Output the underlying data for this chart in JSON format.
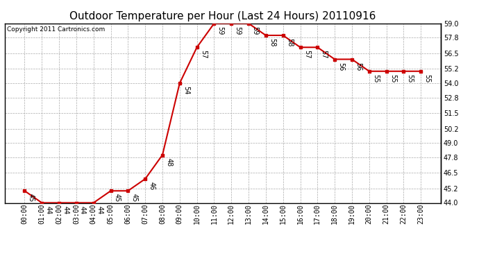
{
  "title": "Outdoor Temperature per Hour (Last 24 Hours) 20110916",
  "copyright": "Copyright 2011 Cartronics.com",
  "hours": [
    "00:00",
    "01:00",
    "02:00",
    "03:00",
    "04:00",
    "05:00",
    "06:00",
    "07:00",
    "08:00",
    "09:00",
    "10:00",
    "11:00",
    "12:00",
    "13:00",
    "14:00",
    "15:00",
    "16:00",
    "17:00",
    "18:00",
    "19:00",
    "20:00",
    "21:00",
    "22:00",
    "23:00"
  ],
  "temps": [
    45,
    44,
    44,
    44,
    44,
    45,
    45,
    46,
    48,
    54,
    57,
    59,
    59,
    59,
    58,
    58,
    57,
    57,
    56,
    56,
    55,
    55,
    55,
    55
  ],
  "ylim_min": 44.0,
  "ylim_max": 59.0,
  "yticks": [
    44.0,
    45.2,
    46.5,
    47.8,
    49.0,
    50.2,
    51.5,
    52.8,
    54.0,
    55.2,
    56.5,
    57.8,
    59.0
  ],
  "ytick_labels": [
    "44.0",
    "45.2",
    "46.5",
    "47.8",
    "49.0",
    "50.2",
    "51.5",
    "52.8",
    "54.0",
    "55.2",
    "56.5",
    "57.8",
    "59.0"
  ],
  "line_color": "#cc0000",
  "bg_color": "#ffffff",
  "grid_color": "#aaaaaa",
  "title_fontsize": 11,
  "tick_fontsize": 7,
  "annot_fontsize": 7,
  "copyright_fontsize": 6.5
}
